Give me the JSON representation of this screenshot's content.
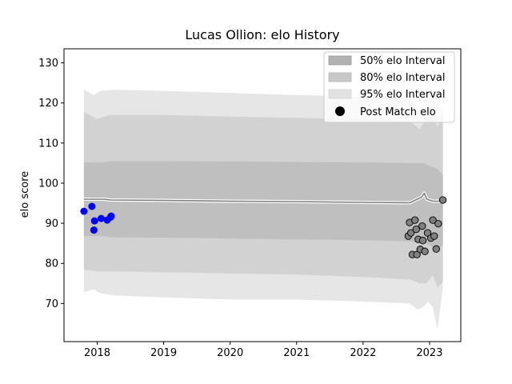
{
  "chart_data": {
    "type": "scatter",
    "title": "Lucas Ollion: elo History",
    "xlabel": "",
    "ylabel": "elo score",
    "xlim": [
      2017.5,
      2023.47
    ],
    "ylim": [
      60.5,
      133.5
    ],
    "x_ticks": [
      2018,
      2019,
      2020,
      2021,
      2022,
      2023
    ],
    "y_ticks": [
      70,
      80,
      90,
      100,
      110,
      120,
      130
    ],
    "legend": {
      "position": "top-right",
      "items": [
        "50% elo Interval",
        "80% elo Interval",
        "95% elo Interval",
        "Post Match elo"
      ]
    },
    "mean_line": {
      "x": [
        2017.8,
        2018.1,
        2018.2,
        2019.0,
        2020.0,
        2021.0,
        2022.0,
        2022.7,
        2022.88,
        2022.92,
        2022.96,
        2023.05,
        2023.15,
        2023.2
      ],
      "y": [
        96.0,
        96.0,
        95.8,
        95.7,
        95.5,
        95.4,
        95.2,
        95.1,
        96.5,
        97.5,
        96.0,
        95.5,
        95.5,
        95.8
      ]
    },
    "band_50": {
      "x": [
        2017.8,
        2018.1,
        2018.2,
        2019.0,
        2020.0,
        2021.0,
        2022.0,
        2022.7,
        2022.88,
        2022.92,
        2022.96,
        2023.05,
        2023.12,
        2023.2
      ],
      "upper": [
        105.2,
        105.2,
        105.5,
        105.5,
        105.4,
        105.3,
        105.2,
        105.0,
        105.0,
        105.0,
        104.5,
        104.0,
        103.5,
        102.0
      ],
      "lower": [
        86.8,
        86.8,
        86.5,
        86.4,
        86.2,
        86.0,
        85.8,
        85.5,
        85.0,
        85.2,
        85.0,
        84.0,
        83.5,
        84.5
      ]
    },
    "band_80": {
      "x": [
        2017.8,
        2018.0,
        2018.2,
        2019.0,
        2020.0,
        2021.0,
        2022.0,
        2022.7,
        2022.85,
        2022.95,
        2023.05,
        2023.12,
        2023.2
      ],
      "upper": [
        117.8,
        116.0,
        117.0,
        117.0,
        116.6,
        116.3,
        115.9,
        115.5,
        113.5,
        116.0,
        117.0,
        114.0,
        117.5
      ],
      "lower": [
        78.5,
        78.0,
        78.0,
        77.8,
        77.5,
        77.2,
        76.6,
        76.0,
        75.0,
        75.0,
        77.0,
        74.0,
        75.5
      ]
    },
    "band_95": {
      "x": [
        2017.8,
        2017.95,
        2018.05,
        2018.25,
        2019.0,
        2020.0,
        2021.0,
        2022.0,
        2022.7,
        2022.82,
        2022.9,
        2022.98,
        2023.05,
        2023.12,
        2023.2
      ],
      "upper": [
        123.3,
        122.0,
        123.0,
        123.3,
        123.0,
        122.5,
        122.0,
        121.5,
        121.0,
        119.0,
        118.5,
        121.0,
        121.5,
        122.0,
        118.0
      ],
      "lower": [
        72.8,
        73.5,
        72.5,
        72.0,
        71.5,
        71.0,
        71.0,
        70.5,
        70.0,
        68.5,
        69.0,
        70.5,
        69.0,
        63.5,
        74.0
      ]
    },
    "series": [
      {
        "name": "",
        "color": "#0000ff",
        "points": [
          {
            "x": 2017.8,
            "y": 93.0
          },
          {
            "x": 2017.92,
            "y": 94.2
          },
          {
            "x": 2017.95,
            "y": 88.3
          },
          {
            "x": 2017.96,
            "y": 90.6
          },
          {
            "x": 2018.06,
            "y": 91.2
          },
          {
            "x": 2018.15,
            "y": 90.8
          },
          {
            "x": 2018.2,
            "y": 91.5
          },
          {
            "x": 2018.21,
            "y": 91.8
          }
        ]
      },
      {
        "name": "Post Match elo",
        "color": "#808080",
        "points": [
          {
            "x": 2022.68,
            "y": 86.8
          },
          {
            "x": 2022.7,
            "y": 90.2
          },
          {
            "x": 2022.72,
            "y": 87.6
          },
          {
            "x": 2022.74,
            "y": 82.2
          },
          {
            "x": 2022.78,
            "y": 90.8
          },
          {
            "x": 2022.8,
            "y": 88.5
          },
          {
            "x": 2022.81,
            "y": 82.2
          },
          {
            "x": 2022.83,
            "y": 86.0
          },
          {
            "x": 2022.86,
            "y": 83.5
          },
          {
            "x": 2022.89,
            "y": 89.3
          },
          {
            "x": 2022.9,
            "y": 85.7
          },
          {
            "x": 2022.93,
            "y": 83.0
          },
          {
            "x": 2022.97,
            "y": 87.6
          },
          {
            "x": 2023.02,
            "y": 86.3
          },
          {
            "x": 2023.05,
            "y": 90.8
          },
          {
            "x": 2023.07,
            "y": 86.8
          },
          {
            "x": 2023.1,
            "y": 83.6
          },
          {
            "x": 2023.13,
            "y": 89.9
          },
          {
            "x": 2023.2,
            "y": 95.8
          }
        ]
      }
    ],
    "colors": {
      "band_50": "#bfbfbf",
      "band_80": "#d2d2d2",
      "band_95": "#e6e6e6",
      "mean_line_outer": "#ffffff",
      "mean_line_inner": "#808080",
      "pre_points": "#0000ff",
      "post_points": "#808080"
    }
  }
}
